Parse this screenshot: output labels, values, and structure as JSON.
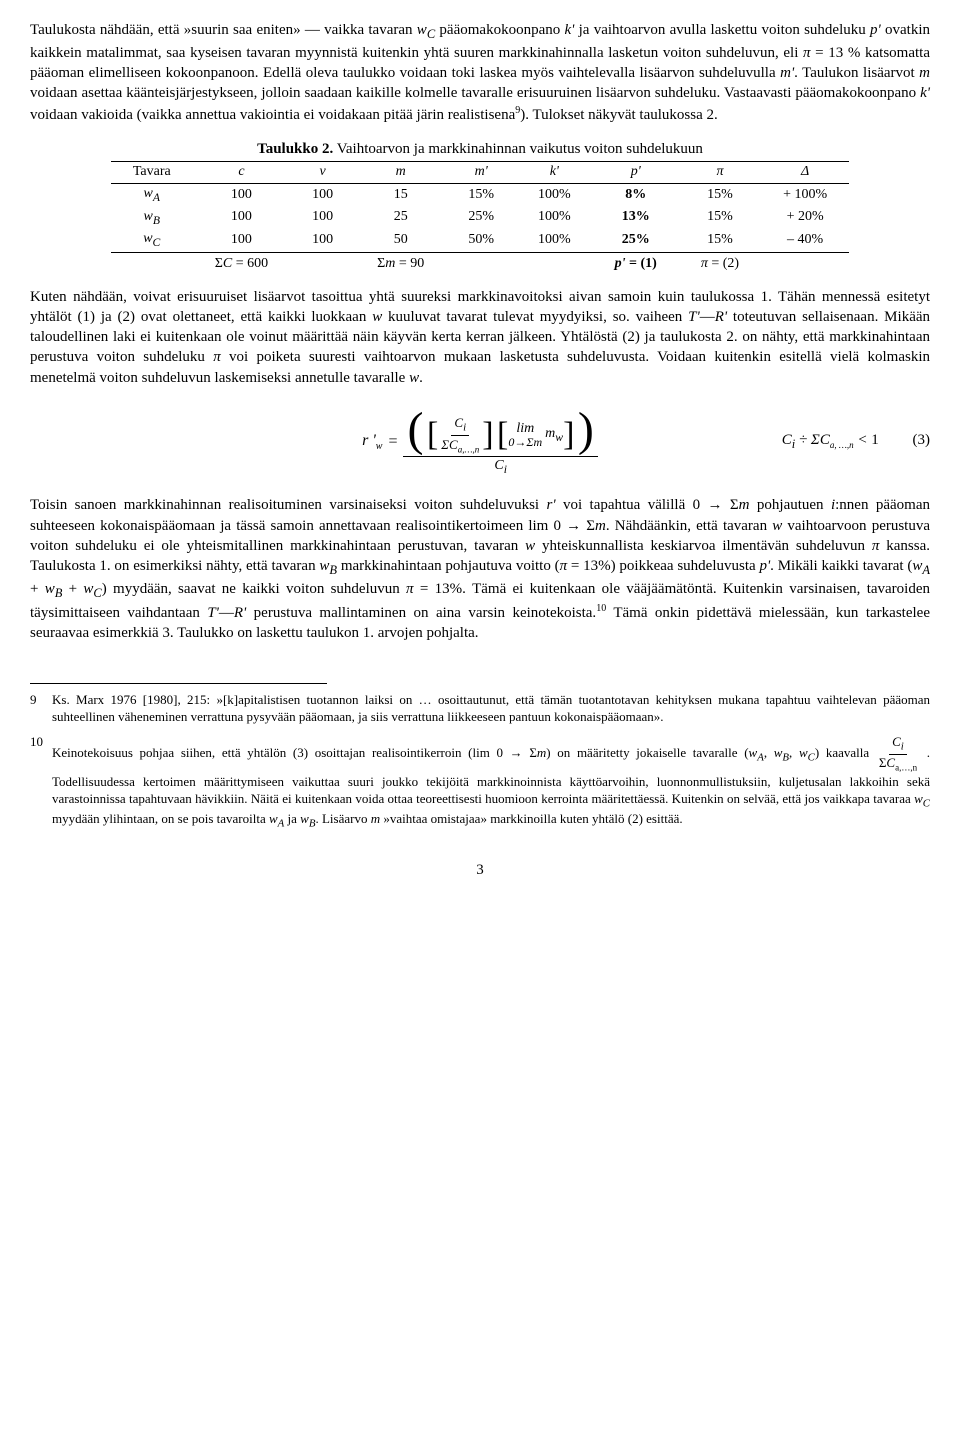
{
  "para1": "Taulukosta nähdään, että »suurin saa eniten» — vaikka tavaran w_C pääomakokoonpano k' ja vaihtoarvon avulla laskettu voiton suhdeluku p' ovatkin kaikkein matalimmat, saa kyseisen tavaran myynnistä kuitenkin yhtä suuren markkinahinnalla lasketun voiton suhdeluvun, eli π = 13 % katsomatta pääoman elimelliseen kokoonpanoon. Edellä oleva taulukko voidaan toki laskea myös vaihtelevalla lisäarvon suhdeluvulla m'. Taulukon lisäarvot m voidaan asettaa käänteisjärjestykseen, jolloin saadaan kaikille kolmelle tavaralle erisuuruinen lisäarvon suhdeluku. Vastaavasti pääomakokoonpano k' voidaan vakioida (vaikka annettua vakiointia ei voidakaan pitää järin realistisena⁹). Tulokset näkyvät taulukossa 2.",
  "table2": {
    "caption_bold": "Taulukko 2.",
    "caption_rest": " Vaihtoarvon ja markkinahinnan vaikutus voiton suhdelukuun",
    "headers": [
      "Tavara",
      "c",
      "v",
      "m",
      "m'",
      "k'",
      "p'",
      "π",
      "Δ"
    ],
    "rows": [
      {
        "label": "w_A",
        "cells": [
          "100",
          "100",
          "15",
          "15%",
          "100%",
          "8%",
          "15%",
          "+ 100%"
        ],
        "bold_idx": 5
      },
      {
        "label": "w_B",
        "cells": [
          "100",
          "100",
          "25",
          "25%",
          "100%",
          "13%",
          "15%",
          "+ 20%"
        ],
        "bold_idx": 5
      },
      {
        "label": "w_C",
        "cells": [
          "100",
          "100",
          "50",
          "50%",
          "100%",
          "25%",
          "15%",
          "– 40%"
        ],
        "bold_idx": 5
      }
    ],
    "sums": [
      "",
      "ΣC = 600",
      "",
      "Σm = 90",
      "",
      "",
      "p' = (1)",
      "π = (2)",
      ""
    ]
  },
  "para2": "Kuten nähdään, voivat erisuuruiset lisäarvot tasoittua yhtä suureksi markkinavoitoksi aivan samoin kuin taulukossa 1. Tähän mennessä esitetyt yhtälöt (1) ja (2) ovat olettaneet, että kaikki luokkaan w kuuluvat tavarat tulevat myydyiksi, so. vaiheen T'—R' toteutuvan sellaisenaan. Mikään taloudellinen laki ei kuitenkaan ole voinut määrittää näin käyvän kerta kerran jälkeen. Yhtälöstä (2) ja taulukosta 2. on nähty, että markkinahintaan perustuva voiton suhdeluku π voi poiketa suuresti vaihtoarvon mukaan lasketusta suhdeluvusta. Voidaan kuitenkin esitellä vielä kolmaskin menetelmä voiton suhdeluvun laskemiseksi annetulle tavaralle w.",
  "eq3_rhs_text": "C_i ÷ ΣC_{a,…,n} < 1          (3)",
  "para3": "Toisin sanoen markkinahinnan realisoituminen varsinaiseksi voiton suhdeluvuksi r' voi tapahtua välillä 0 → Σm pohjautuen i:nnen pääoman suhteeseen kokonaispääomaan ja tässä samoin annettavaan realisointikertoimeen lim 0 → Σm. Nähdäänkin, että tavaran w vaihtoarvoon perustuva voiton suhdeluku ei ole yhteismitallinen markkinahintaan perustuvan, tavaran w yhteiskunnallista keskiarvoa ilmentävän suhdeluvun π kanssa. Taulukosta 1. on esimerkiksi nähty, että tavaran w_B markkinahintaan pohjautuva voitto (π = 13%) poikkeaa suhdeluvusta p'. Mikäli kaikki tavarat (w_A + w_B + w_C) myydään, saavat ne kaikki voiton suhdeluvun π = 13%. Tämä ei kuitenkaan ole vääjäämätöntä. Kuitenkin varsinaisen, tavaroiden täysimittaiseen vaihdantaan T'—R' perustuva mallintaminen on aina varsin keinotekoista.¹⁰ Tämä onkin pidettävä mielessään, kun tarkastelee seuraavaa esimerkkiä 3. Taulukko on laskettu taulukon 1. arvojen pohjalta.",
  "footnotes": {
    "n9_num": "9",
    "n9": "Ks. Marx 1976 [1980], 215: »[k]apitalistisen tuotannon laiksi on … osoittautunut, että tämän tuotantotavan kehityksen mukana tapahtuu vaihtelevan pääoman suhteellinen väheneminen verrattuna pysyvään pääomaan, ja siis verrattuna liikkeeseen pantuun kokonaispääomaan».",
    "n10_num": "10",
    "n10_a": "Keinotekoisuus pohjaa siihen, että yhtälön (3) osoittajan realisointikerroin (lim 0 → Σm) on määritetty jokaiselle tavaralle (w_A, w_B, w_C) kaavalla ",
    "n10_b": ". Todellisuudessa kertoimen määrittymiseen vaikuttaa suuri joukko tekijöitä markkinoinnista käyttöarvoihin, luonnonmullistuksiin, kuljetusalan lakkoihin sekä varastoinnissa tapahtuvaan hävikkiin. Näitä ei kuitenkaan voida ottaa teoreettisesti huomioon kerrointa määritettäessä. Kuitenkin on selvää, että jos vaikkapa tavaraa w_C myydään ylihintaan, on se pois tavaroilta w_A ja w_B. Lisäarvo m »vaihtaa omistajaa» markkinoilla kuten yhtälö (2) esittää."
  },
  "pagenum": "3"
}
